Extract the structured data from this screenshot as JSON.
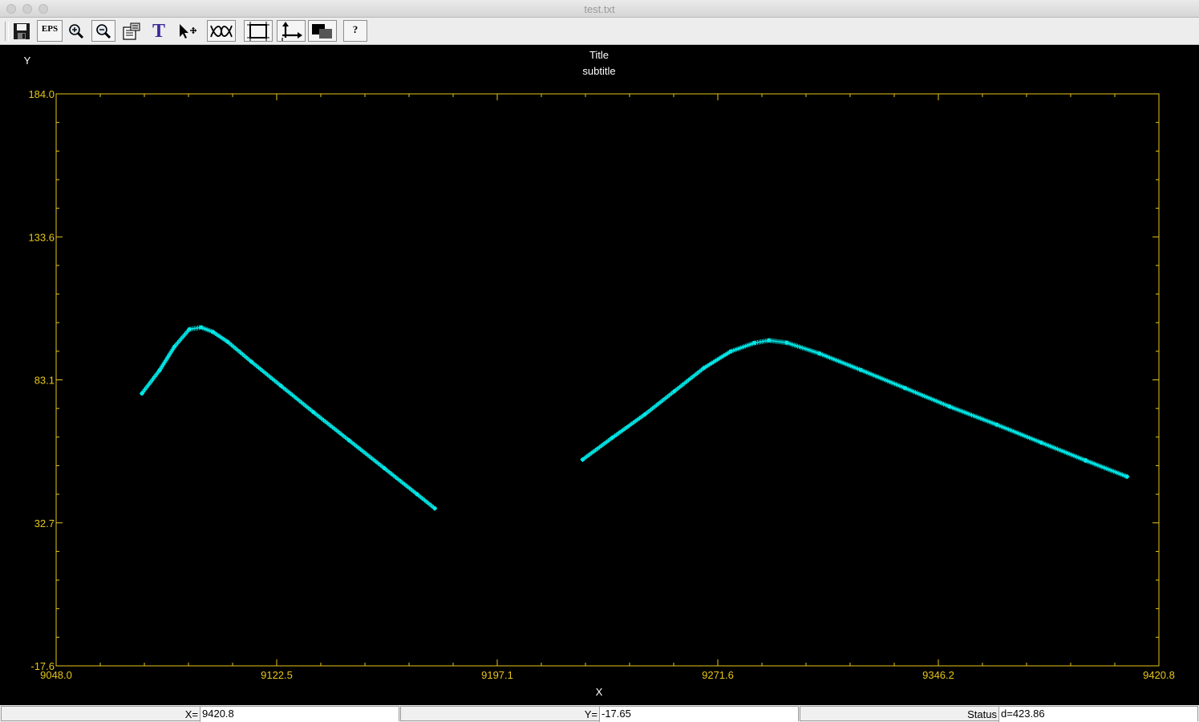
{
  "window": {
    "title": "test.txt"
  },
  "toolbar": {
    "buttons": [
      {
        "name": "save-button",
        "icon": "floppy-disk-icon",
        "label": ""
      },
      {
        "name": "eps-export-button",
        "icon": "eps-icon",
        "label": "EPS"
      },
      {
        "name": "zoom-in-button",
        "icon": "zoom-in-icon",
        "label": ""
      },
      {
        "name": "zoom-out-button",
        "icon": "zoom-out-icon",
        "label": ""
      },
      {
        "name": "properties-button",
        "icon": "properties-icon",
        "label": ""
      },
      {
        "name": "text-button",
        "icon": "text-icon",
        "label": "T"
      },
      {
        "name": "select-move-button",
        "icon": "pointer-move-icon",
        "label": ""
      },
      {
        "name": "curve-fit-button",
        "icon": "curve-icon",
        "label": ""
      },
      {
        "name": "frame-button",
        "icon": "frame-icon",
        "label": ""
      },
      {
        "name": "axes-button",
        "icon": "axes-icon",
        "label": ""
      },
      {
        "name": "color-toggle-button",
        "icon": "color-squares-icon",
        "label": ""
      },
      {
        "name": "help-button",
        "icon": "help-icon",
        "label": "?"
      }
    ]
  },
  "chart_data": {
    "type": "scatter",
    "title": "Title",
    "subtitle": "subtitle",
    "xlabel": "X",
    "ylabel": "Y",
    "xlim": [
      9048.0,
      9420.8
    ],
    "ylim": [
      -17.6,
      184.0
    ],
    "xticks": [
      "9048.0",
      "9122.5",
      "9197.1",
      "9271.6",
      "9346.2",
      "9420.8"
    ],
    "yticks": [
      "-17.6",
      "32.7",
      "83.1",
      "133.6",
      "184.0"
    ],
    "grid": false,
    "colors": {
      "background": "#000000",
      "axes": "#e6c619",
      "series": "#00e8e8",
      "text": "#ffffff"
    },
    "series": [
      {
        "points": [
          [
            9077,
            78.4
          ],
          [
            9083,
            86.6
          ],
          [
            9088,
            94.9
          ],
          [
            9093,
            101.0
          ],
          [
            9097,
            101.7
          ],
          [
            9101,
            100.1
          ],
          [
            9106,
            96.6
          ],
          [
            9114,
            89.6
          ],
          [
            9124,
            81.1
          ],
          [
            9135,
            71.8
          ],
          [
            9147,
            61.9
          ],
          [
            9159,
            52.0
          ],
          [
            9170,
            42.9
          ],
          [
            9176,
            37.9
          ]
        ]
      },
      {
        "points": [
          [
            9226,
            55.1
          ],
          [
            9236,
            62.8
          ],
          [
            9247,
            71.0
          ],
          [
            9257,
            79.2
          ],
          [
            9267,
            87.4
          ],
          [
            9276,
            93.2
          ],
          [
            9284,
            96.2
          ],
          [
            9289,
            97.1
          ],
          [
            9295,
            96.3
          ],
          [
            9306,
            92.5
          ],
          [
            9320,
            86.7
          ],
          [
            9335,
            80.3
          ],
          [
            9350,
            73.8
          ],
          [
            9366,
            67.4
          ],
          [
            9381,
            61.1
          ],
          [
            9396,
            54.8
          ],
          [
            9410,
            49.1
          ],
          [
            9396,
            54.8
          ],
          [
            9396,
            54.8
          ],
          [
            9396,
            54.8
          ],
          [
            9410,
            49.1
          ],
          [
            9396,
            54.8
          ],
          [
            9396,
            54.8
          ],
          [
            9396,
            54.8
          ],
          [
            9396,
            54.8
          ],
          [
            9396,
            54.8
          ],
          [
            9396,
            54.8
          ],
          [
            9396,
            54.8
          ],
          [
            9396,
            54.8
          ],
          [
            9396,
            54.8
          ],
          [
            9396,
            54.8
          ],
          [
            9396,
            54.8
          ],
          [
            9396,
            54.8
          ],
          [
            9396,
            54.8
          ],
          [
            9396,
            54.8
          ],
          [
            9396,
            54.8
          ],
          [
            9396,
            54.8
          ],
          [
            9396,
            54.8
          ],
          [
            9396,
            54.8
          ],
          [
            9396,
            54.8
          ],
          [
            9396,
            54.8
          ],
          [
            9396,
            54.8
          ],
          [
            9396,
            54.8
          ],
          [
            9396,
            54.8
          ],
          [
            9396,
            54.8
          ],
          [
            9396,
            54.8
          ],
          [
            9396,
            54.8
          ],
          [
            9396,
            54.8
          ],
          [
            9396,
            54.8
          ],
          [
            9396,
            54.8
          ],
          [
            9396,
            54.8
          ],
          [
            9396,
            54.8
          ],
          [
            9396,
            54.8
          ],
          [
            9396,
            54.8
          ],
          [
            9396,
            54.8
          ],
          [
            9396,
            54.8
          ],
          [
            9396,
            54.8
          ],
          [
            9396,
            54.8
          ],
          [
            9396,
            54.8
          ],
          [
            9396,
            54.8
          ],
          [
            9396,
            54.8
          ],
          [
            9396,
            54.8
          ],
          [
            9396,
            54.8
          ],
          [
            9396,
            54.8
          ],
          [
            9396,
            54.8
          ],
          [
            9396,
            54.8
          ],
          [
            9396,
            54.8
          ],
          [
            9396,
            54.8
          ],
          [
            9396,
            54.8
          ],
          [
            9396,
            54.8
          ],
          [
            9396,
            54.8
          ],
          [
            9396,
            54.8
          ],
          [
            9396,
            54.8
          ],
          [
            9396,
            54.8
          ],
          [
            9396,
            54.8
          ],
          [
            9396,
            54.8
          ],
          [
            9396,
            54.8
          ],
          [
            9396,
            54.8
          ],
          [
            9396,
            54.8
          ],
          [
            9396,
            54.8
          ],
          [
            9396,
            54.8
          ],
          [
            9396,
            54.8
          ],
          [
            9396,
            54.8
          ],
          [
            9396,
            54.8
          ],
          [
            9396,
            54.8
          ],
          [
            9396,
            54.8
          ],
          [
            9396,
            54.8
          ],
          [
            9396,
            54.8
          ],
          [
            9396,
            54.8
          ],
          [
            9396,
            54.8
          ],
          [
            9396,
            54.8
          ],
          [
            9396,
            54.8
          ],
          [
            9396,
            54.8
          ],
          [
            9396,
            54.8
          ],
          [
            9396,
            54.8
          ],
          [
            9396,
            54.8
          ],
          [
            9396,
            54.8
          ],
          [
            9396,
            54.8
          ],
          [
            9396,
            54.8
          ],
          [
            9396,
            54.8
          ],
          [
            9396,
            54.8
          ],
          [
            9396,
            54.8
          ],
          [
            9396,
            54.8
          ],
          [
            9396,
            54.8
          ],
          [
            9396,
            54.8
          ],
          [
            9396,
            54.8
          ],
          [
            9396,
            54.8
          ],
          [
            9396,
            54.8
          ],
          [
            9396,
            54.8
          ],
          [
            9396,
            54.8
          ],
          [
            9396,
            54.8
          ],
          [
            9396,
            54.8
          ],
          [
            9396,
            54.8
          ],
          [
            9396,
            54.8
          ],
          [
            9396,
            54.8
          ],
          [
            9396,
            54.8
          ],
          [
            9396,
            54.8
          ],
          [
            9396,
            54.8
          ],
          [
            9396,
            54.8
          ],
          [
            9396,
            54.8
          ],
          [
            9396,
            54.8
          ],
          [
            9396,
            54.8
          ],
          [
            9396,
            54.8
          ],
          [
            9396,
            54.8
          ],
          [
            9396,
            54.8
          ],
          [
            9396,
            54.8
          ],
          [
            9396,
            54.8
          ],
          [
            9396,
            54.8
          ],
          [
            9396,
            54.8
          ],
          [
            9396,
            54.8
          ],
          [
            9396,
            54.8
          ],
          [
            9396,
            54.8
          ],
          [
            9396,
            54.8
          ],
          [
            9396,
            54.8
          ],
          [
            9396,
            54.8
          ],
          [
            9396,
            54.8
          ],
          [
            9396,
            54.8
          ],
          [
            9396,
            54.8
          ],
          [
            9396,
            54.8
          ],
          [
            9396,
            54.8
          ],
          [
            9396,
            54.8
          ],
          [
            9396,
            54.8
          ],
          [
            9396,
            54.8
          ],
          [
            9396,
            54.8
          ],
          [
            9396,
            54.8
          ],
          [
            9396,
            54.8
          ],
          [
            9396,
            54.8
          ],
          [
            9396,
            54.8
          ],
          [
            9396,
            54.8
          ],
          [
            9396,
            54.8
          ],
          [
            9396,
            54.8
          ],
          [
            9396,
            54.8
          ],
          [
            9396,
            54.8
          ],
          [
            9396,
            54.8
          ],
          [
            9396,
            54.8
          ],
          [
            9396,
            54.8
          ],
          [
            9396,
            54.8
          ],
          [
            9396,
            54.8
          ],
          [
            9396,
            54.8
          ],
          [
            9396,
            54.8
          ],
          [
            9396,
            54.8
          ],
          [
            9396,
            54.8
          ],
          [
            9396,
            54.8
          ],
          [
            9396,
            54.8
          ],
          [
            9396,
            54.8
          ],
          [
            9396,
            54.8
          ],
          [
            9396,
            54.8
          ],
          [
            9396,
            54.8
          ],
          [
            9396,
            54.8
          ],
          [
            9396,
            54.8
          ],
          [
            9396,
            54.8
          ],
          [
            9396,
            54.8
          ],
          [
            9396,
            54.8
          ],
          [
            9396,
            54.8
          ],
          [
            9396,
            54.8
          ],
          [
            9396,
            54.8
          ],
          [
            9396,
            54.8
          ],
          [
            9396,
            54.8
          ],
          [
            9396,
            54.8
          ],
          [
            9396,
            54.8
          ],
          [
            9396,
            54.8
          ],
          [
            9396,
            54.8
          ],
          [
            9396,
            54.8
          ],
          [
            9396,
            54.8
          ],
          [
            9396,
            54.8
          ],
          [
            9396,
            54.8
          ],
          [
            9396,
            54.8
          ],
          [
            9396,
            54.8
          ],
          [
            9396,
            54.8
          ],
          [
            9396,
            54.8
          ],
          [
            9396,
            54.8
          ],
          [
            9396,
            54.8
          ],
          [
            9396,
            54.8
          ],
          [
            9396,
            54.8
          ],
          [
            9396,
            54.8
          ],
          [
            9396,
            54.8
          ],
          [
            9396,
            54.8
          ],
          [
            9396,
            54.8
          ],
          [
            9396,
            54.8
          ],
          [
            9396,
            54.8
          ],
          [
            9396,
            54.8
          ]
        ]
      }
    ]
  },
  "statusbar": {
    "x_label": "X=",
    "x_value": "9420.8",
    "y_label": "Y=",
    "y_value": "-17.65",
    "status_label": "Status",
    "status_value": "d=423.86"
  }
}
